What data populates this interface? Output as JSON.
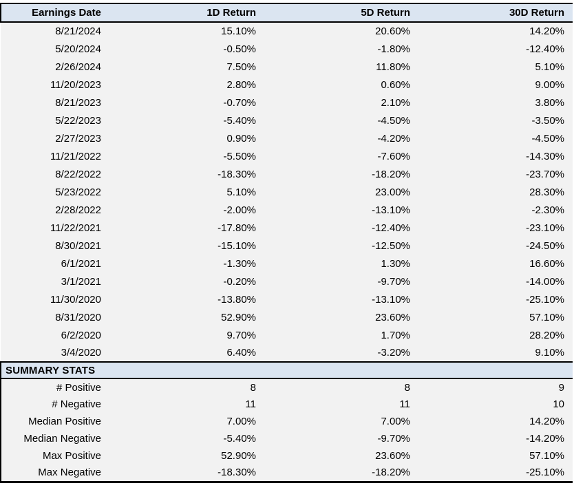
{
  "table": {
    "columns": [
      "Earnings Date",
      "1D Return",
      "5D Return",
      "30D Return"
    ],
    "rows": [
      [
        "8/21/2024",
        "15.10%",
        "20.60%",
        "14.20%"
      ],
      [
        "5/20/2024",
        "-0.50%",
        "-1.80%",
        "-12.40%"
      ],
      [
        "2/26/2024",
        "7.50%",
        "11.80%",
        "5.10%"
      ],
      [
        "11/20/2023",
        "2.80%",
        "0.60%",
        "9.00%"
      ],
      [
        "8/21/2023",
        "-0.70%",
        "2.10%",
        "3.80%"
      ],
      [
        "5/22/2023",
        "-5.40%",
        "-4.50%",
        "-3.50%"
      ],
      [
        "2/27/2023",
        "0.90%",
        "-4.20%",
        "-4.50%"
      ],
      [
        "11/21/2022",
        "-5.50%",
        "-7.60%",
        "-14.30%"
      ],
      [
        "8/22/2022",
        "-18.30%",
        "-18.20%",
        "-23.70%"
      ],
      [
        "5/23/2022",
        "5.10%",
        "23.00%",
        "28.30%"
      ],
      [
        "2/28/2022",
        "-2.00%",
        "-13.10%",
        "-2.30%"
      ],
      [
        "11/22/2021",
        "-17.80%",
        "-12.40%",
        "-23.10%"
      ],
      [
        "8/30/2021",
        "-15.10%",
        "-12.50%",
        "-24.50%"
      ],
      [
        "6/1/2021",
        "-1.30%",
        "1.30%",
        "16.60%"
      ],
      [
        "3/1/2021",
        "-0.20%",
        "-9.70%",
        "-14.00%"
      ],
      [
        "11/30/2020",
        "-13.80%",
        "-13.10%",
        "-25.10%"
      ],
      [
        "8/31/2020",
        "52.90%",
        "23.60%",
        "57.10%"
      ],
      [
        "6/2/2020",
        "9.70%",
        "1.70%",
        "28.20%"
      ],
      [
        "3/4/2020",
        "6.40%",
        "-3.20%",
        "9.10%"
      ]
    ]
  },
  "summary": {
    "title": "SUMMARY STATS",
    "rows": [
      [
        "# Positive",
        "8",
        "8",
        "9"
      ],
      [
        "# Negative",
        "11",
        "11",
        "10"
      ],
      [
        "Median Positive",
        "7.00%",
        "7.00%",
        "14.20%"
      ],
      [
        "Median Negative",
        "-5.40%",
        "-9.70%",
        "-14.20%"
      ],
      [
        "Max Positive",
        "52.90%",
        "23.60%",
        "57.10%"
      ],
      [
        "Max Negative",
        "-18.30%",
        "-18.20%",
        "-25.10%"
      ]
    ]
  },
  "colors": {
    "header_background": "#dbe5f1",
    "body_background": "#f2f2f2",
    "border": "#000000",
    "text": "#000000"
  }
}
